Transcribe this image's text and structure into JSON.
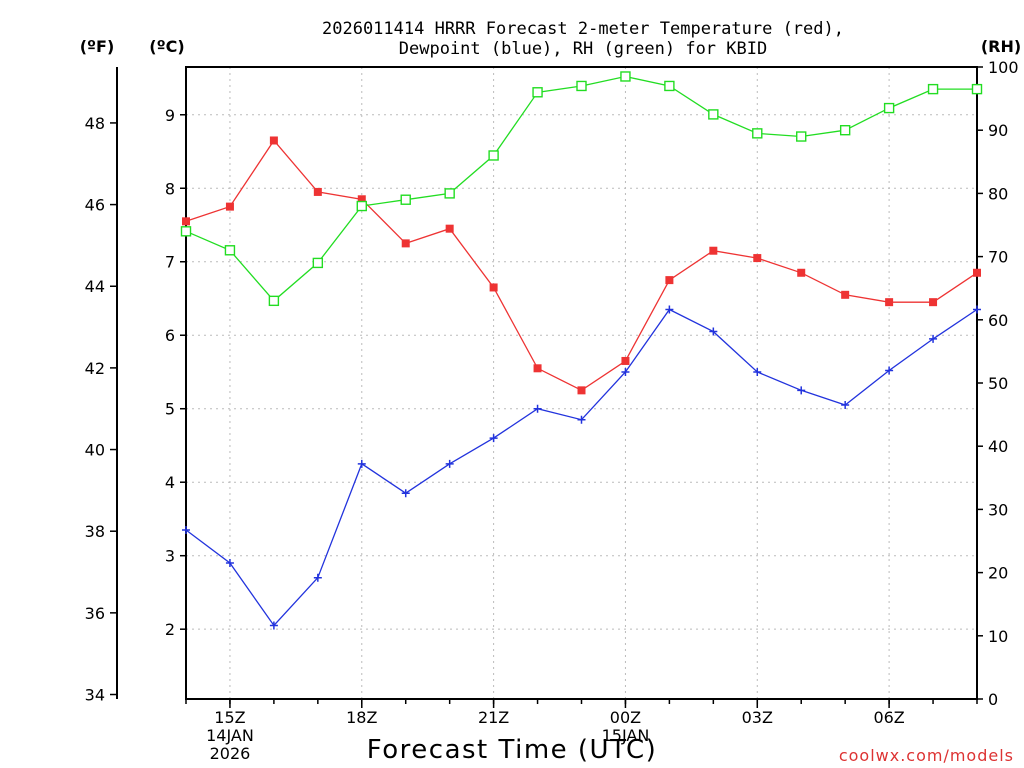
{
  "chart_data": {
    "type": "line",
    "title_line1": "2026011414 HRRR Forecast 2-meter Temperature (red),",
    "title_line2": "Dewpoint (blue), RH (green) for KBID",
    "xlabel": "Forecast Time (UTC)",
    "left_outer_axis_label": "(ºF)",
    "left_inner_axis_label": "(ºC)",
    "right_axis_label": "(RH)",
    "credit": "coolwx.com/models",
    "x_ticks": [
      {
        "hour": 1,
        "label": "15Z",
        "sub1": "14JAN",
        "sub2": "2026"
      },
      {
        "hour": 4,
        "label": "18Z"
      },
      {
        "hour": 7,
        "label": "21Z"
      },
      {
        "hour": 10,
        "label": "00Z",
        "sub1": "15JAN"
      },
      {
        "hour": 13,
        "label": "03Z"
      },
      {
        "hour": 16,
        "label": "06Z"
      }
    ],
    "x_range": [
      0,
      18
    ],
    "celsius_range": [
      1.05,
      9.65
    ],
    "celsius_ticks": [
      2,
      3,
      4,
      5,
      6,
      7,
      8,
      9
    ],
    "fahrenheit_ticks": [
      34,
      36,
      38,
      40,
      42,
      44,
      46,
      48
    ],
    "rh_range": [
      0,
      100
    ],
    "rh_ticks": [
      0,
      10,
      20,
      30,
      40,
      50,
      60,
      70,
      80,
      90,
      100
    ],
    "grid": true,
    "x_hours": [
      0,
      1,
      2,
      3,
      4,
      5,
      6,
      7,
      8,
      9,
      10,
      11,
      12,
      13,
      14,
      15,
      16,
      17,
      18
    ],
    "series": [
      {
        "name": "Temperature",
        "unit": "C",
        "axis": "celsius",
        "color": "#ee3333",
        "marker": "filled-square",
        "values": [
          7.55,
          7.75,
          8.65,
          7.95,
          7.85,
          7.25,
          7.45,
          6.65,
          5.55,
          5.25,
          5.65,
          6.75,
          7.15,
          7.05,
          6.85,
          6.55,
          6.45,
          6.45,
          6.85
        ]
      },
      {
        "name": "Dewpoint",
        "unit": "C",
        "axis": "celsius",
        "color": "#2233dd",
        "marker": "plus",
        "values": [
          3.35,
          2.9,
          2.05,
          2.7,
          4.25,
          3.85,
          4.25,
          4.6,
          5.0,
          4.85,
          5.5,
          6.35,
          6.05,
          5.5,
          5.25,
          5.05,
          5.52,
          5.95,
          6.35
        ]
      },
      {
        "name": "RH",
        "unit": "%",
        "axis": "rh",
        "color": "#22dd22",
        "marker": "open-square",
        "values": [
          74,
          71,
          63,
          69,
          78,
          79,
          80,
          86,
          96,
          97,
          98.5,
          97,
          92.5,
          89.5,
          89,
          90,
          93.5,
          96.5,
          96.5
        ]
      }
    ]
  }
}
